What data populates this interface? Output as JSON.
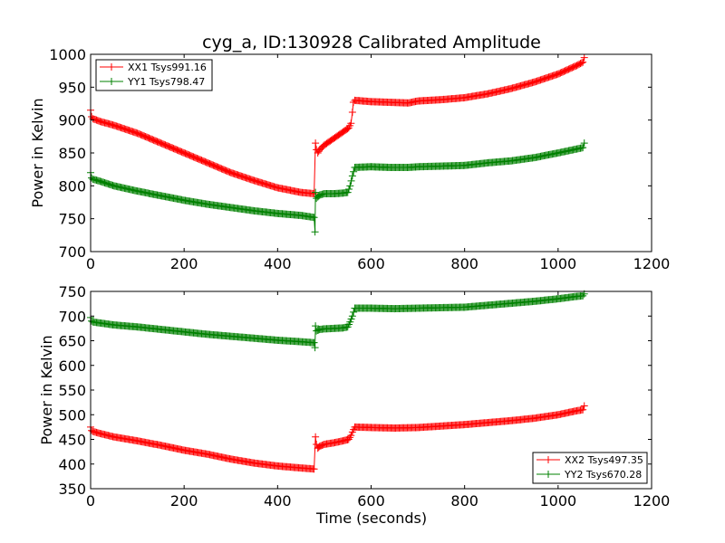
{
  "chart_data": [
    {
      "type": "line",
      "title": "cyg_a, ID:130928 Calibrated Amplitude",
      "xlabel": "",
      "ylabel": "Power in Kelvin",
      "xlim": [
        0,
        1200
      ],
      "ylim": [
        700,
        1000
      ],
      "xticks": [
        "0",
        "200",
        "400",
        "600",
        "800",
        "1000",
        "1200"
      ],
      "yticks": [
        "700",
        "750",
        "800",
        "850",
        "900",
        "950",
        "1000"
      ],
      "legend_position": "upper-left",
      "series": [
        {
          "name": "XX1 Tsys991.16",
          "color": "#ff0000",
          "x": [
            0,
            2,
            5,
            20,
            50,
            100,
            150,
            200,
            250,
            300,
            350,
            400,
            450,
            478,
            481,
            483,
            486,
            490,
            500,
            520,
            540,
            552,
            557,
            560,
            562,
            565,
            600,
            640,
            680,
            700,
            750,
            800,
            850,
            900,
            950,
            1000,
            1040,
            1053,
            1056
          ],
          "y": [
            915,
            905,
            902,
            898,
            892,
            880,
            865,
            850,
            835,
            820,
            808,
            797,
            790,
            788,
            865,
            855,
            850,
            855,
            862,
            872,
            882,
            888,
            895,
            912,
            927,
            930,
            928,
            927,
            926,
            929,
            931,
            934,
            940,
            948,
            958,
            970,
            983,
            988,
            995
          ]
        },
        {
          "name": "YY1 Tsys798.47",
          "color": "#008000",
          "x": [
            0,
            2,
            5,
            20,
            50,
            100,
            150,
            200,
            250,
            300,
            350,
            400,
            450,
            478,
            480,
            481,
            483,
            486,
            490,
            500,
            520,
            540,
            550,
            555,
            560,
            565,
            600,
            640,
            680,
            700,
            750,
            800,
            850,
            900,
            950,
            1000,
            1040,
            1053,
            1056
          ],
          "y": [
            820,
            812,
            810,
            807,
            800,
            792,
            785,
            778,
            772,
            767,
            762,
            758,
            755,
            752,
            730,
            790,
            781,
            783,
            786,
            788,
            788,
            789,
            790,
            800,
            815,
            828,
            829,
            828,
            828,
            829,
            830,
            831,
            835,
            838,
            843,
            850,
            856,
            858,
            865
          ]
        }
      ]
    },
    {
      "type": "line",
      "title": "",
      "xlabel": "Time (seconds)",
      "ylabel": "Power in Kelvin",
      "xlim": [
        0,
        1200
      ],
      "ylim": [
        350,
        750
      ],
      "xticks": [
        "0",
        "200",
        "400",
        "600",
        "800",
        "1000",
        "1200"
      ],
      "yticks": [
        "350",
        "400",
        "450",
        "500",
        "550",
        "600",
        "650",
        "700",
        "750"
      ],
      "legend_position": "lower-right",
      "series": [
        {
          "name": "XX2 Tsys497.35",
          "color": "#ff0000",
          "x": [
            0,
            2,
            5,
            20,
            50,
            100,
            150,
            200,
            250,
            300,
            350,
            400,
            450,
            478,
            481,
            483,
            486,
            490,
            500,
            520,
            540,
            552,
            557,
            560,
            565,
            600,
            650,
            700,
            750,
            800,
            850,
            900,
            950,
            1000,
            1040,
            1053,
            1056
          ],
          "y": [
            475,
            468,
            466,
            462,
            455,
            447,
            438,
            428,
            420,
            410,
            402,
            396,
            392,
            390,
            455,
            440,
            432,
            436,
            440,
            443,
            447,
            450,
            458,
            465,
            475,
            474,
            473,
            474,
            477,
            480,
            484,
            488,
            493,
            500,
            508,
            510,
            518
          ]
        },
        {
          "name": "YY2 Tsys670.28",
          "color": "#008000",
          "x": [
            0,
            2,
            5,
            20,
            50,
            100,
            150,
            200,
            250,
            300,
            350,
            400,
            450,
            478,
            480,
            481,
            483,
            486,
            490,
            500,
            520,
            540,
            550,
            555,
            560,
            565,
            600,
            650,
            700,
            750,
            800,
            850,
            900,
            950,
            1000,
            1040,
            1053,
            1056
          ],
          "y": [
            697,
            690,
            688,
            686,
            682,
            678,
            673,
            668,
            663,
            659,
            655,
            651,
            648,
            646,
            636,
            680,
            670,
            671,
            673,
            674,
            675,
            676,
            678,
            688,
            700,
            716,
            716,
            715,
            716,
            717,
            718,
            722,
            726,
            730,
            735,
            740,
            741,
            745
          ]
        }
      ]
    }
  ]
}
